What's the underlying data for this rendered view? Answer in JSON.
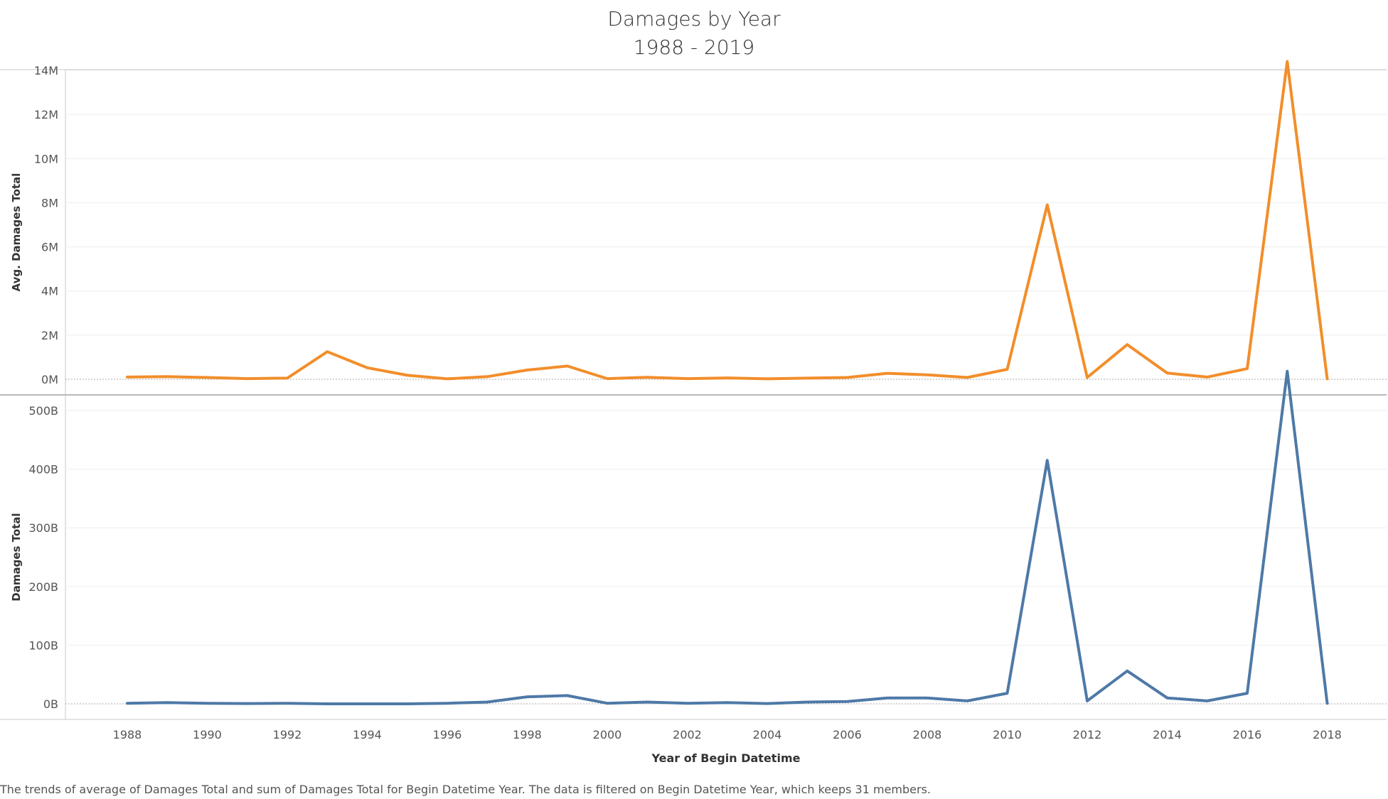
{
  "title_line1": "Damages by Year",
  "title_line2": "1988 - 2019",
  "caption": "The trends of average of Damages Total and sum of Damages Total for Begin Datetime Year. The data is filtered on Begin Datetime Year, which keeps 31 members.",
  "colors": {
    "top_series": "#f28e2b",
    "bottom_series": "#4e79a7",
    "axis": "#c8c8c8",
    "grid": "#eeeeee"
  },
  "chart_data": [
    {
      "type": "line",
      "ylabel": "Avg. Damages Total",
      "xlabel": "",
      "ylim": [
        0,
        14500000
      ],
      "yticks": [
        0,
        2000000,
        4000000,
        6000000,
        8000000,
        10000000,
        12000000,
        14000000
      ],
      "ytick_labels": [
        "0M",
        "2M",
        "4M",
        "6M",
        "8M",
        "10M",
        "12M",
        "14M"
      ],
      "x": [
        1988,
        1989,
        1990,
        1991,
        1992,
        1993,
        1994,
        1995,
        1996,
        1997,
        1998,
        1999,
        2000,
        2001,
        2002,
        2003,
        2004,
        2005,
        2006,
        2007,
        2008,
        2009,
        2010,
        2011,
        2012,
        2013,
        2014,
        2015,
        2016,
        2017,
        2018
      ],
      "series": [
        {
          "values": [
            100000,
            120000,
            80000,
            30000,
            50000,
            1250000,
            520000,
            180000,
            20000,
            120000,
            420000,
            600000,
            30000,
            90000,
            30000,
            60000,
            20000,
            50000,
            80000,
            270000,
            200000,
            80000,
            450000,
            7900000,
            80000,
            1570000,
            280000,
            100000,
            480000,
            14400000,
            20000
          ]
        }
      ]
    },
    {
      "type": "line",
      "ylabel": "Damages Total",
      "xlabel": "Year of Begin Datetime",
      "ylim": [
        0,
        580
      ],
      "yticks": [
        0,
        100,
        200,
        300,
        400,
        500
      ],
      "ytick_labels": [
        "0B",
        "100B",
        "200B",
        "300B",
        "400B",
        "500B"
      ],
      "xticks": [
        1988,
        1990,
        1992,
        1994,
        1996,
        1998,
        2000,
        2002,
        2004,
        2006,
        2008,
        2010,
        2012,
        2014,
        2016,
        2018
      ],
      "x": [
        1988,
        1989,
        1990,
        1991,
        1992,
        1993,
        1994,
        1995,
        1996,
        1997,
        1998,
        1999,
        2000,
        2001,
        2002,
        2003,
        2004,
        2005,
        2006,
        2007,
        2008,
        2009,
        2010,
        2011,
        2012,
        2013,
        2014,
        2015,
        2016,
        2017,
        2018
      ],
      "series": [
        {
          "values": [
            1,
            2,
            1,
            0.5,
            1,
            0,
            0,
            0,
            1,
            3,
            12,
            14,
            1,
            3,
            1,
            2,
            0.5,
            3,
            4,
            10,
            10,
            5,
            18,
            415,
            5,
            56,
            10,
            5,
            18,
            567,
            1
          ]
        }
      ]
    }
  ]
}
